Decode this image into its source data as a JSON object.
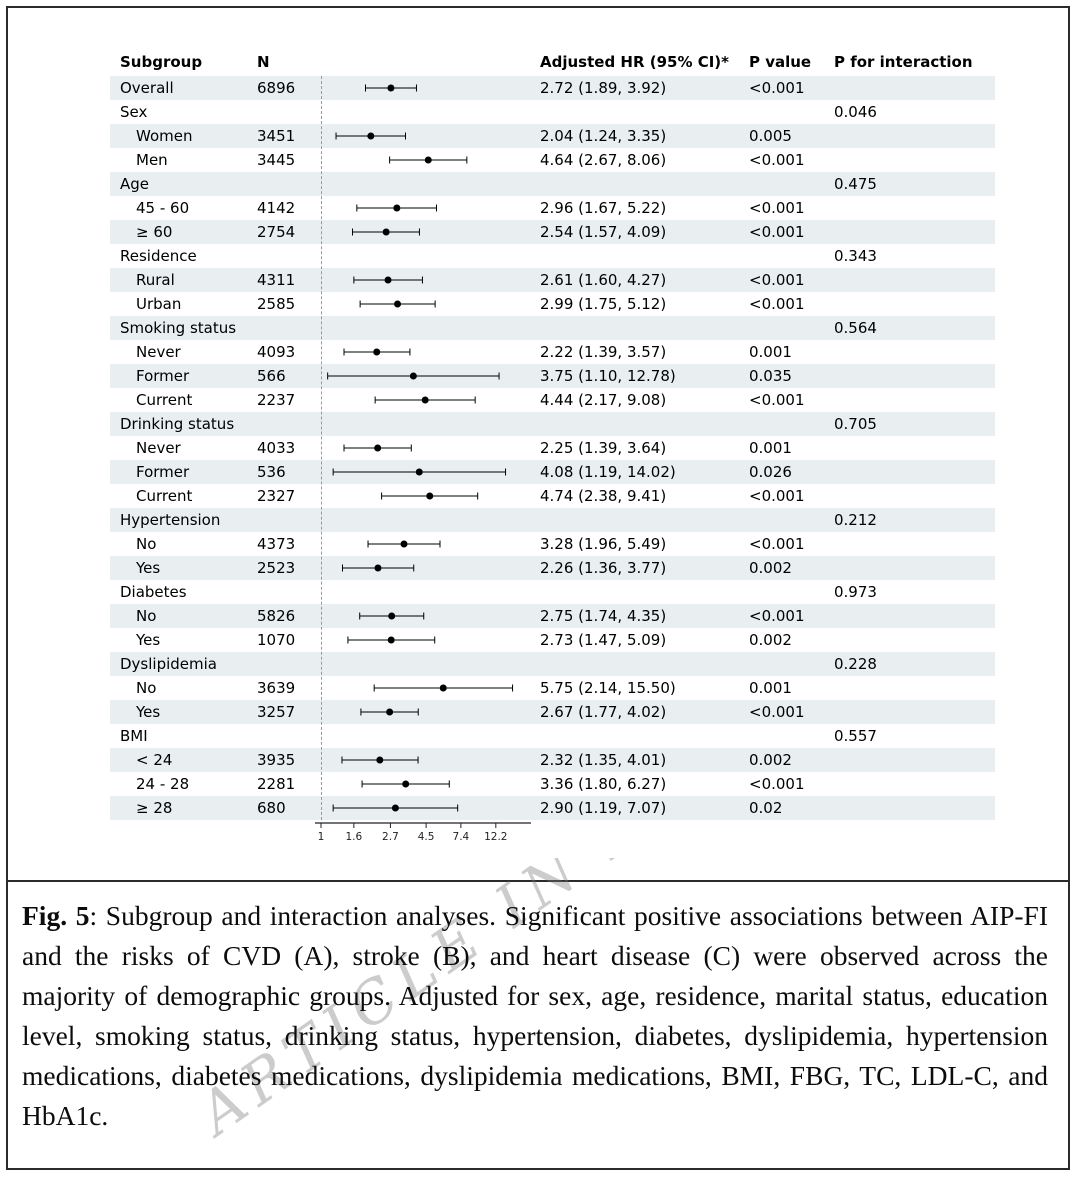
{
  "chart_data": {
    "type": "scatter",
    "subtype": "forest-plot",
    "title": "Subgroup and interaction analyses (forest plot)",
    "columns": {
      "subgroup": "Subgroup",
      "n": "N",
      "hr": "Adjusted HR (95% CI)*",
      "p": "P value",
      "p_int": "P for interaction"
    },
    "x_axis": {
      "scale": "log",
      "ticks": [
        "1",
        "1.6",
        "2.7",
        "4.5",
        "7.4",
        "12.2"
      ],
      "tick_values": [
        1,
        1.6,
        2.7,
        4.5,
        7.4,
        12.2
      ],
      "reference_value": 1
    },
    "rows": [
      {
        "type": "data",
        "label": "Overall",
        "indent": false,
        "n": "6896",
        "est": 2.72,
        "lo": 1.89,
        "hi": 3.92,
        "hr_text": "2.72 (1.89, 3.92)",
        "p": "<0.001",
        "p_int": ""
      },
      {
        "type": "group",
        "label": "Sex",
        "indent": false,
        "n": "",
        "hr_text": "",
        "p": "",
        "p_int": "0.046"
      },
      {
        "type": "data",
        "label": "Women",
        "indent": true,
        "n": "3451",
        "est": 2.04,
        "lo": 1.24,
        "hi": 3.35,
        "hr_text": "2.04 (1.24, 3.35)",
        "p": "0.005",
        "p_int": ""
      },
      {
        "type": "data",
        "label": "Men",
        "indent": true,
        "n": "3445",
        "est": 4.64,
        "lo": 2.67,
        "hi": 8.06,
        "hr_text": "4.64 (2.67, 8.06)",
        "p": "<0.001",
        "p_int": ""
      },
      {
        "type": "group",
        "label": "Age",
        "indent": false,
        "n": "",
        "hr_text": "",
        "p": "",
        "p_int": "0.475"
      },
      {
        "type": "data",
        "label": "45 - 60",
        "indent": true,
        "n": "4142",
        "est": 2.96,
        "lo": 1.67,
        "hi": 5.22,
        "hr_text": "2.96 (1.67, 5.22)",
        "p": "<0.001",
        "p_int": ""
      },
      {
        "type": "data",
        "label": "≥ 60",
        "indent": true,
        "n": "2754",
        "est": 2.54,
        "lo": 1.57,
        "hi": 4.09,
        "hr_text": "2.54 (1.57, 4.09)",
        "p": "<0.001",
        "p_int": ""
      },
      {
        "type": "group",
        "label": "Residence",
        "indent": false,
        "n": "",
        "hr_text": "",
        "p": "",
        "p_int": "0.343"
      },
      {
        "type": "data",
        "label": "Rural",
        "indent": true,
        "n": "4311",
        "est": 2.61,
        "lo": 1.6,
        "hi": 4.27,
        "hr_text": "2.61 (1.60, 4.27)",
        "p": "<0.001",
        "p_int": ""
      },
      {
        "type": "data",
        "label": "Urban",
        "indent": true,
        "n": "2585",
        "est": 2.99,
        "lo": 1.75,
        "hi": 5.12,
        "hr_text": "2.99 (1.75, 5.12)",
        "p": "<0.001",
        "p_int": ""
      },
      {
        "type": "group",
        "label": "Smoking status",
        "indent": false,
        "n": "",
        "hr_text": "",
        "p": "",
        "p_int": "0.564"
      },
      {
        "type": "data",
        "label": "Never",
        "indent": true,
        "n": "4093",
        "est": 2.22,
        "lo": 1.39,
        "hi": 3.57,
        "hr_text": "2.22 (1.39, 3.57)",
        "p": "0.001",
        "p_int": ""
      },
      {
        "type": "data",
        "label": "Former",
        "indent": true,
        "n": "566",
        "est": 3.75,
        "lo": 1.1,
        "hi": 12.78,
        "hr_text": "3.75 (1.10, 12.78)",
        "p": "0.035",
        "p_int": ""
      },
      {
        "type": "data",
        "label": "Current",
        "indent": true,
        "n": "2237",
        "est": 4.44,
        "lo": 2.17,
        "hi": 9.08,
        "hr_text": "4.44 (2.17, 9.08)",
        "p": "<0.001",
        "p_int": ""
      },
      {
        "type": "group",
        "label": "Drinking status",
        "indent": false,
        "n": "",
        "hr_text": "",
        "p": "",
        "p_int": "0.705"
      },
      {
        "type": "data",
        "label": "Never",
        "indent": true,
        "n": "4033",
        "est": 2.25,
        "lo": 1.39,
        "hi": 3.64,
        "hr_text": "2.25 (1.39, 3.64)",
        "p": "0.001",
        "p_int": ""
      },
      {
        "type": "data",
        "label": "Former",
        "indent": true,
        "n": "536",
        "est": 4.08,
        "lo": 1.19,
        "hi": 14.02,
        "hr_text": "4.08 (1.19, 14.02)",
        "p": "0.026",
        "p_int": ""
      },
      {
        "type": "data",
        "label": "Current",
        "indent": true,
        "n": "2327",
        "est": 4.74,
        "lo": 2.38,
        "hi": 9.41,
        "hr_text": "4.74 (2.38, 9.41)",
        "p": "<0.001",
        "p_int": ""
      },
      {
        "type": "group",
        "label": "Hypertension",
        "indent": false,
        "n": "",
        "hr_text": "",
        "p": "",
        "p_int": "0.212"
      },
      {
        "type": "data",
        "label": "No",
        "indent": true,
        "n": "4373",
        "est": 3.28,
        "lo": 1.96,
        "hi": 5.49,
        "hr_text": "3.28 (1.96, 5.49)",
        "p": "<0.001",
        "p_int": ""
      },
      {
        "type": "data",
        "label": "Yes",
        "indent": true,
        "n": "2523",
        "est": 2.26,
        "lo": 1.36,
        "hi": 3.77,
        "hr_text": "2.26 (1.36, 3.77)",
        "p": "0.002",
        "p_int": ""
      },
      {
        "type": "group",
        "label": "Diabetes",
        "indent": false,
        "n": "",
        "hr_text": "",
        "p": "",
        "p_int": "0.973"
      },
      {
        "type": "data",
        "label": "No",
        "indent": true,
        "n": "5826",
        "est": 2.75,
        "lo": 1.74,
        "hi": 4.35,
        "hr_text": "2.75 (1.74, 4.35)",
        "p": "<0.001",
        "p_int": ""
      },
      {
        "type": "data",
        "label": "Yes",
        "indent": true,
        "n": "1070",
        "est": 2.73,
        "lo": 1.47,
        "hi": 5.09,
        "hr_text": "2.73 (1.47, 5.09)",
        "p": "0.002",
        "p_int": ""
      },
      {
        "type": "group",
        "label": "Dyslipidemia",
        "indent": false,
        "n": "",
        "hr_text": "",
        "p": "",
        "p_int": "0.228"
      },
      {
        "type": "data",
        "label": "No",
        "indent": true,
        "n": "3639",
        "est": 5.75,
        "lo": 2.14,
        "hi": 15.5,
        "hr_text": "5.75 (2.14, 15.50)",
        "p": "0.001",
        "p_int": ""
      },
      {
        "type": "data",
        "label": "Yes",
        "indent": true,
        "n": "3257",
        "est": 2.67,
        "lo": 1.77,
        "hi": 4.02,
        "hr_text": "2.67 (1.77, 4.02)",
        "p": "<0.001",
        "p_int": ""
      },
      {
        "type": "group",
        "label": "BMI",
        "indent": false,
        "n": "",
        "hr_text": "",
        "p": "",
        "p_int": "0.557"
      },
      {
        "type": "data",
        "label": "< 24",
        "indent": true,
        "n": "3935",
        "est": 2.32,
        "lo": 1.35,
        "hi": 4.01,
        "hr_text": "2.32 (1.35, 4.01)",
        "p": "0.002",
        "p_int": ""
      },
      {
        "type": "data",
        "label": "24 - 28",
        "indent": true,
        "n": "2281",
        "est": 3.36,
        "lo": 1.8,
        "hi": 6.27,
        "hr_text": "3.36 (1.80, 6.27)",
        "p": "<0.001",
        "p_int": ""
      },
      {
        "type": "data",
        "label": "≥ 28",
        "indent": true,
        "n": "680",
        "est": 2.9,
        "lo": 1.19,
        "hi": 7.07,
        "hr_text": "2.90 (1.19, 7.07)",
        "p": "0.02",
        "p_int": ""
      }
    ],
    "colors": {
      "row_shade": "#e9eef0",
      "marker": "#000000",
      "reference_line": "#999999"
    }
  },
  "caption": {
    "label": "Fig. 5",
    "text": ": Subgroup and interaction analyses. Significant positive associations between AIP-FI and the risks of CVD (A), stroke (B), and heart disease (C) were observed across the majority of demographic groups. Adjusted for sex, age, residence, marital status, education level, smoking status, drinking status, hypertension, diabetes, dyslipidemia, hypertension medications, diabetes medications, dyslipidemia medications, BMI, FBG, TC, LDL-C, and HbA1c."
  },
  "watermark": "ARTICLE IN PRESS"
}
